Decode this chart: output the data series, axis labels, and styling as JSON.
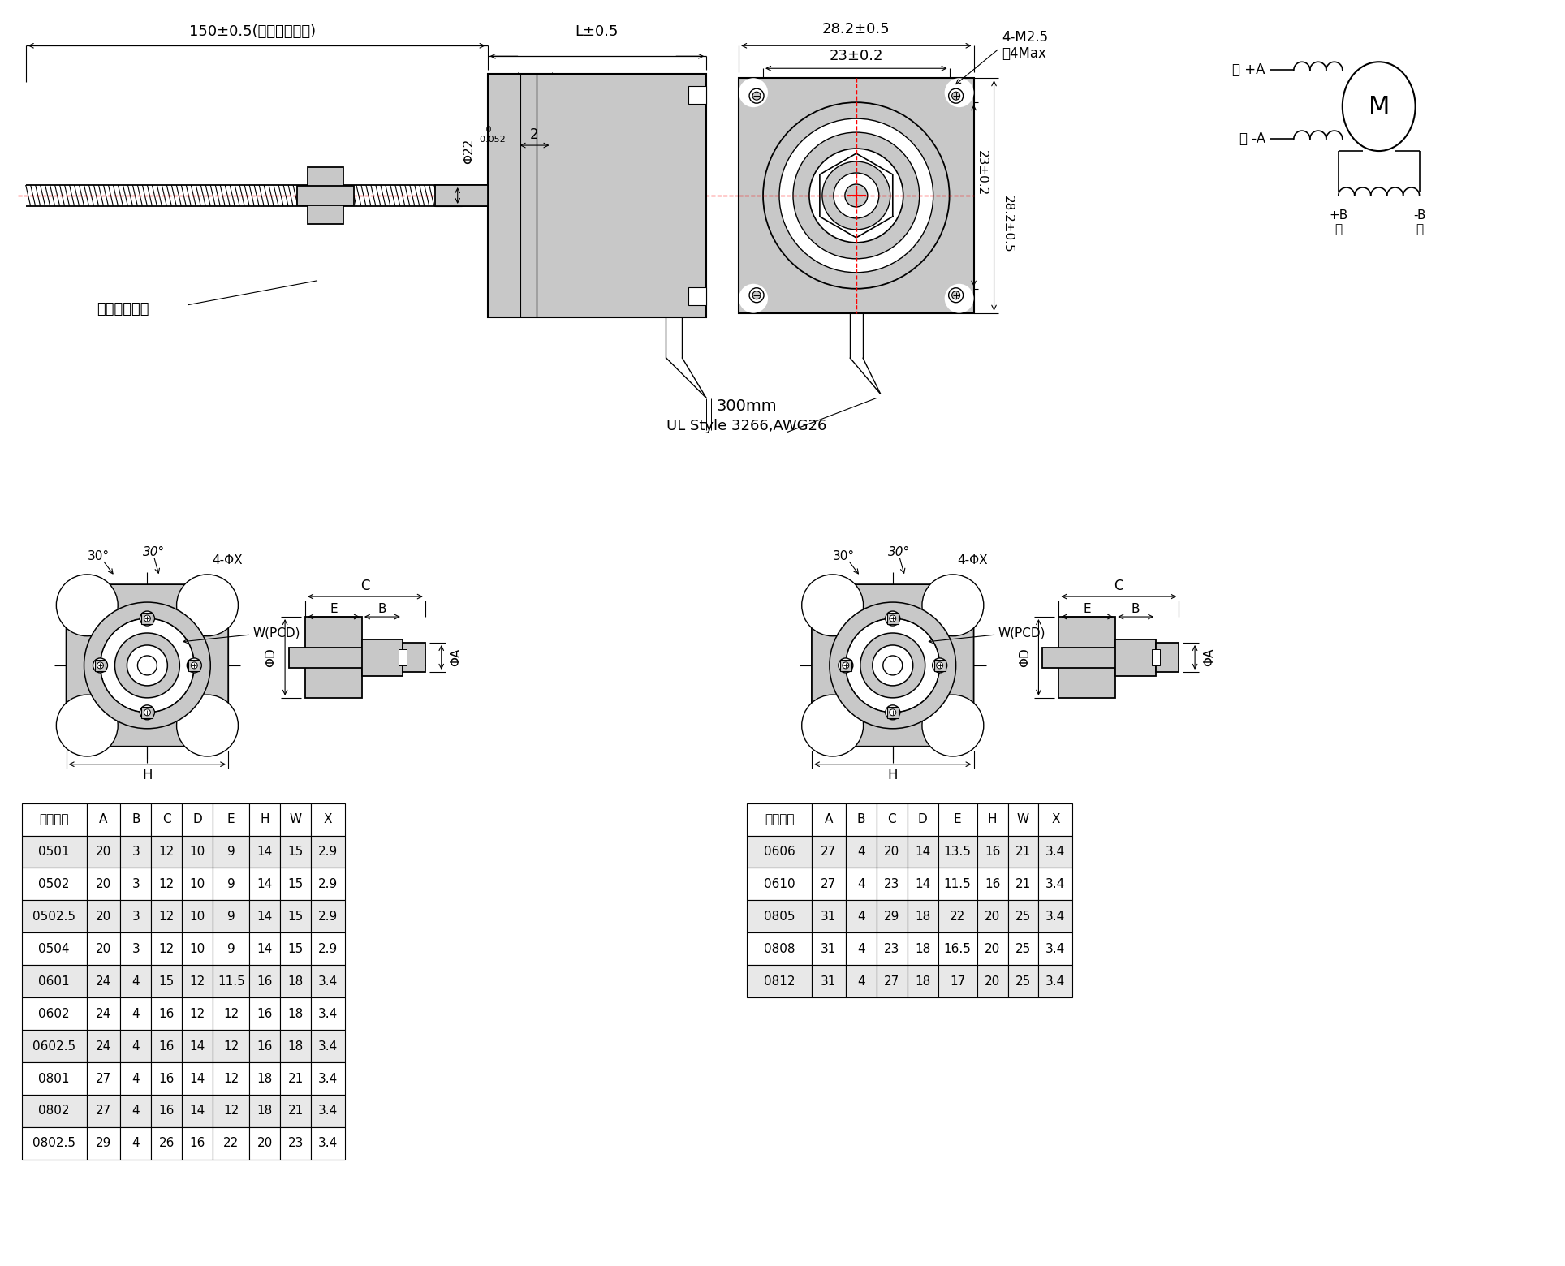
{
  "bg_color": "#ffffff",
  "lc": "#000000",
  "rc": "#ff0000",
  "gf": "#b8b8b8",
  "lgf": "#c8c8c8",
  "t1_header": [
    "螺母尺寸",
    "A",
    "B",
    "C",
    "D",
    "E",
    "H",
    "W",
    "X"
  ],
  "t1_rows": [
    [
      "0501",
      "20",
      "3",
      "12",
      "10",
      "9",
      "14",
      "15",
      "2.9"
    ],
    [
      "0502",
      "20",
      "3",
      "12",
      "10",
      "9",
      "14",
      "15",
      "2.9"
    ],
    [
      "0502.5",
      "20",
      "3",
      "12",
      "10",
      "9",
      "14",
      "15",
      "2.9"
    ],
    [
      "0504",
      "20",
      "3",
      "12",
      "10",
      "9",
      "14",
      "15",
      "2.9"
    ],
    [
      "0601",
      "24",
      "4",
      "15",
      "12",
      "11.5",
      "16",
      "18",
      "3.4"
    ],
    [
      "0602",
      "24",
      "4",
      "16",
      "12",
      "12",
      "16",
      "18",
      "3.4"
    ],
    [
      "0602.5",
      "24",
      "4",
      "16",
      "14",
      "12",
      "16",
      "18",
      "3.4"
    ],
    [
      "0801",
      "27",
      "4",
      "16",
      "14",
      "12",
      "18",
      "21",
      "3.4"
    ],
    [
      "0802",
      "27",
      "4",
      "16",
      "14",
      "12",
      "18",
      "21",
      "3.4"
    ],
    [
      "0802.5",
      "29",
      "4",
      "26",
      "16",
      "22",
      "20",
      "23",
      "3.4"
    ]
  ],
  "t2_header": [
    "螺母尺寸",
    "A",
    "B",
    "C",
    "D",
    "E",
    "H",
    "W",
    "X"
  ],
  "t2_rows": [
    [
      "0606",
      "27",
      "4",
      "20",
      "14",
      "13.5",
      "16",
      "21",
      "3.4"
    ],
    [
      "0610",
      "27",
      "4",
      "23",
      "14",
      "11.5",
      "16",
      "21",
      "3.4"
    ],
    [
      "0805",
      "31",
      "4",
      "29",
      "18",
      "22",
      "20",
      "25",
      "3.4"
    ],
    [
      "0808",
      "31",
      "4",
      "23",
      "18",
      "16.5",
      "20",
      "25",
      "3.4"
    ],
    [
      "0812",
      "31",
      "4",
      "27",
      "18",
      "17",
      "20",
      "25",
      "3.4"
    ]
  ],
  "alt_color": "#e8e8e8",
  "white": "#ffffff"
}
